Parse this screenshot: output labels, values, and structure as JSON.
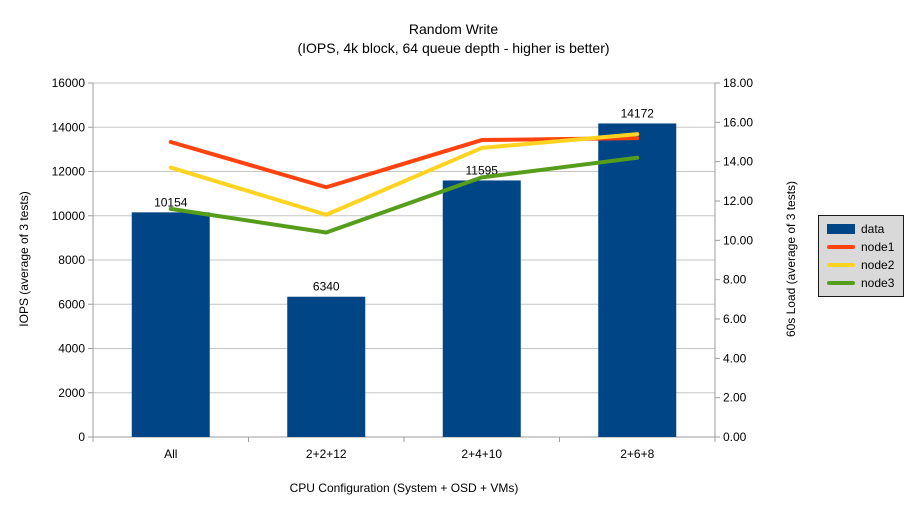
{
  "chart_data": {
    "type": "bar+line",
    "title": "Random Write",
    "subtitle": "(IOPS, 4k block, 64 queue depth - higher is better)",
    "categories": [
      "All",
      "2+2+12",
      "2+4+10",
      "2+6+8"
    ],
    "x_axis": {
      "title": "CPU Configuration (System + OSD + VMs)"
    },
    "left_axis": {
      "title": "IOPS (average of 3 tests)",
      "min": 0,
      "max": 16000,
      "step": 2000,
      "tick_labels": [
        "0",
        "2000",
        "4000",
        "6000",
        "8000",
        "10000",
        "12000",
        "14000",
        "16000"
      ]
    },
    "right_axis": {
      "title": "60s Load (average of 3 tests)",
      "min": 0,
      "max": 18,
      "step": 2,
      "tick_labels": [
        "0.00",
        "2.00",
        "4.00",
        "6.00",
        "8.00",
        "10.00",
        "12.00",
        "14.00",
        "16.00",
        "18.00"
      ]
    },
    "bar_series": {
      "name": "data",
      "axis": "left",
      "color": "#004586",
      "values": [
        10154,
        6340,
        11595,
        14172
      ],
      "value_labels": [
        "10154",
        "6340",
        "11595",
        "14172"
      ]
    },
    "line_series": [
      {
        "name": "node1",
        "axis": "right",
        "color": "#FF420E",
        "values": [
          15.0,
          12.7,
          15.1,
          15.2
        ]
      },
      {
        "name": "node2",
        "axis": "right",
        "color": "#FFD320",
        "values": [
          13.7,
          11.3,
          14.7,
          15.4
        ]
      },
      {
        "name": "node3",
        "axis": "right",
        "color": "#579D1C",
        "values": [
          11.6,
          10.4,
          13.2,
          14.2
        ]
      }
    ],
    "legend": {
      "position": "right",
      "entries": [
        {
          "label": "data",
          "color": "#004586",
          "marker": "bar"
        },
        {
          "label": "node1",
          "color": "#FF420E",
          "marker": "line"
        },
        {
          "label": "node2",
          "color": "#FFD320",
          "marker": "line"
        },
        {
          "label": "node3",
          "color": "#579D1C",
          "marker": "line"
        }
      ]
    },
    "style": {
      "grid_color": "#c6c6c6",
      "axis_color": "#9e9e9e",
      "legend_background": "#d9d9d9",
      "legend_border": "#1a1a1a",
      "text_color": "#000000",
      "background": "#ffffff"
    },
    "grid": {
      "horizontal": true,
      "vertical": false
    }
  }
}
